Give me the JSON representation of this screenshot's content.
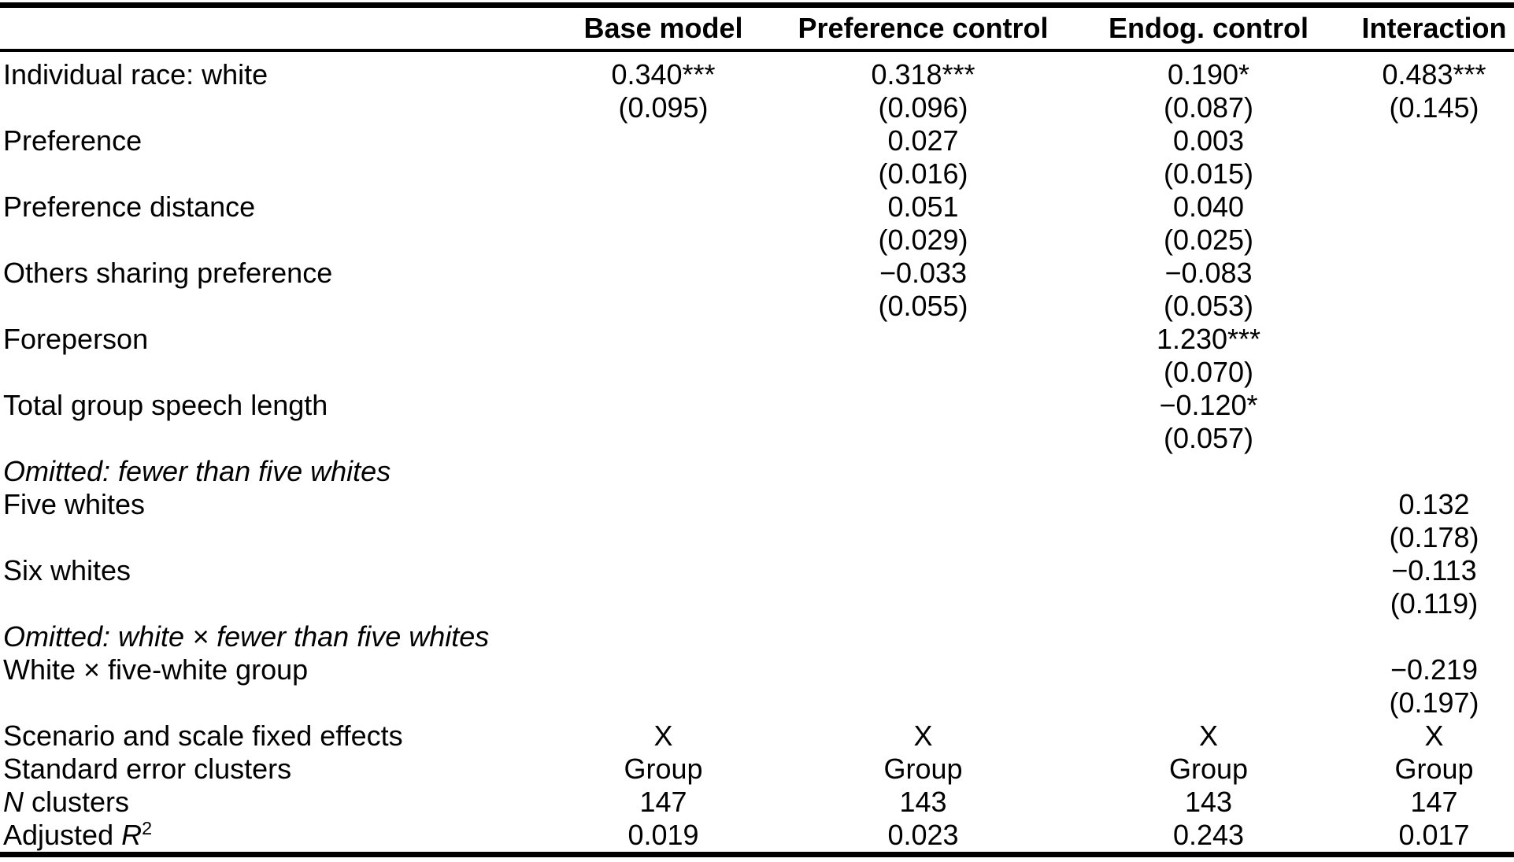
{
  "table": {
    "columns": {
      "base": "Base model",
      "pref": "Preference control",
      "endog": "Endog. control",
      "inter": "Interaction"
    },
    "rows": {
      "individual_race": {
        "label": "Individual race: white",
        "base": {
          "est": "0.340***",
          "se": "(0.095)"
        },
        "pref": {
          "est": "0.318***",
          "se": "(0.096)"
        },
        "endog": {
          "est": "0.190*",
          "se": "(0.087)"
        },
        "inter": {
          "est": "0.483***",
          "se": "(0.145)"
        }
      },
      "preference": {
        "label": "Preference",
        "pref": {
          "est": "0.027",
          "se": "(0.016)"
        },
        "endog": {
          "est": "0.003",
          "se": "(0.015)"
        }
      },
      "preference_distance": {
        "label": "Preference distance",
        "pref": {
          "est": "0.051",
          "se": "(0.029)"
        },
        "endog": {
          "est": "0.040",
          "se": "(0.025)"
        }
      },
      "others_sharing": {
        "label": "Others sharing preference",
        "pref": {
          "est": "−0.033",
          "se": "(0.055)"
        },
        "endog": {
          "est": "−0.083",
          "se": "(0.053)"
        }
      },
      "foreperson": {
        "label": "Foreperson",
        "endog": {
          "est": "1.230***",
          "se": "(0.070)"
        }
      },
      "speech_length": {
        "label": "Total group speech length",
        "endog": {
          "est": "−0.120*",
          "se": "(0.057)"
        }
      },
      "omitted_fewer": {
        "label": "Omitted: fewer than five whites"
      },
      "five_whites": {
        "label": "Five whites",
        "inter": {
          "est": "0.132",
          "se": "(0.178)"
        }
      },
      "six_whites": {
        "label": "Six whites",
        "inter": {
          "est": "−0.113",
          "se": "(0.119)"
        }
      },
      "omitted_white_fewer": {
        "label": "Omitted: white × fewer than five whites"
      },
      "white_x_five": {
        "label": "White × five-white group",
        "inter": {
          "est": "−0.219",
          "se": "(0.197)"
        }
      },
      "fixed_effects": {
        "label": "Scenario and scale fixed effects",
        "base": "X",
        "pref": "X",
        "endog": "X",
        "inter": "X"
      },
      "se_clusters": {
        "label": "Standard error clusters",
        "base": "Group",
        "pref": "Group",
        "endog": "Group",
        "inter": "Group"
      },
      "n_clusters": {
        "label_italic": "N",
        "label_rest": " clusters",
        "base": "147",
        "pref": "143",
        "endog": "143",
        "inter": "147"
      },
      "adjusted_r2": {
        "label_pre": "Adjusted ",
        "label_italic": "R",
        "label_sup": "2",
        "base": "0.019",
        "pref": "0.023",
        "endog": "0.243",
        "inter": "0.017"
      }
    }
  }
}
